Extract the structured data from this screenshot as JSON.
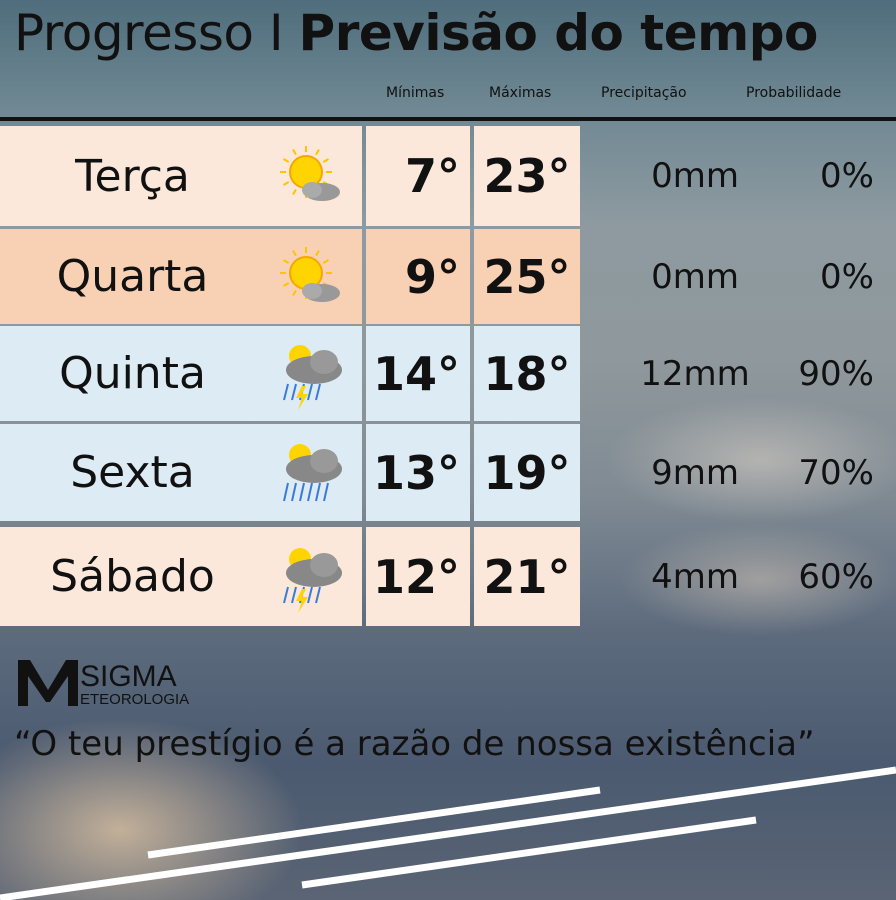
{
  "header": {
    "location": "Progresso",
    "separator": "I",
    "title": "Previsão do tempo",
    "columns": [
      "Mínimas",
      "Máximas",
      "Precipitação",
      "Probabilidade"
    ]
  },
  "forecast": [
    {
      "day": "Terça",
      "icon": "sun-cloud-icon",
      "min": "7°",
      "max": "23°",
      "precip": "0mm",
      "prob": "0%",
      "color": "#fbe8da"
    },
    {
      "day": "Quarta",
      "icon": "sun-cloud-icon",
      "min": "9°",
      "max": "25°",
      "precip": "0mm",
      "prob": "0%",
      "color": "#f8d1b4"
    },
    {
      "day": "Quinta",
      "icon": "thunderstorm-icon",
      "min": "14°",
      "max": "18°",
      "precip": "12mm",
      "prob": "90%",
      "color": "#dcebf4"
    },
    {
      "day": "Sexta",
      "icon": "rain-icon",
      "min": "13°",
      "max": "19°",
      "precip": "9mm",
      "prob": "70%",
      "color": "#dcebf4"
    },
    {
      "day": "Sábado",
      "icon": "thunderstorm-icon",
      "min": "12°",
      "max": "21°",
      "precip": "4mm",
      "prob": "60%",
      "color": "#fbe8da"
    }
  ],
  "logo": {
    "brand": "SIGMA",
    "sub": "ETEOROLOGIA"
  },
  "quote": "“O teu prestígio é a razão de nossa existência”"
}
